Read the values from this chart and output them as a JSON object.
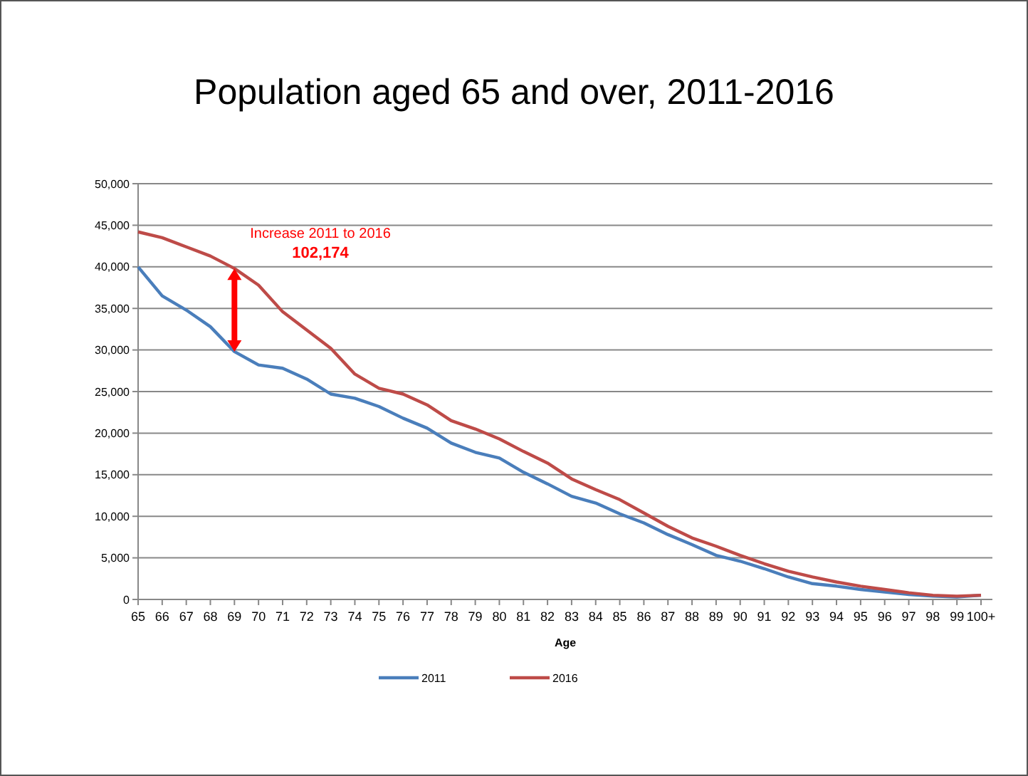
{
  "chart_data": {
    "type": "line",
    "title": "Population aged 65 and over, 2011-2016",
    "xlabel": "Age",
    "categories": [
      "65",
      "66",
      "67",
      "68",
      "69",
      "70",
      "71",
      "72",
      "73",
      "74",
      "75",
      "76",
      "77",
      "78",
      "79",
      "80",
      "81",
      "82",
      "83",
      "84",
      "85",
      "86",
      "87",
      "88",
      "89",
      "90",
      "91",
      "92",
      "93",
      "94",
      "95",
      "96",
      "97",
      "98",
      "99",
      "100+"
    ],
    "series": [
      {
        "name": "2011",
        "color": "#4a7ebb",
        "values": [
          40000,
          36500,
          34800,
          32800,
          29800,
          28200,
          27800,
          26500,
          24700,
          24200,
          23200,
          21800,
          20600,
          18800,
          17700,
          17000,
          15300,
          13900,
          12400,
          11600,
          10300,
          9200,
          7800,
          6600,
          5300,
          4600,
          3700,
          2700,
          1900,
          1600,
          1200,
          900,
          600,
          400,
          300,
          500
        ]
      },
      {
        "name": "2016",
        "color": "#be4b48",
        "values": [
          44200,
          43500,
          42400,
          41300,
          39800,
          37800,
          34600,
          32400,
          30200,
          27100,
          25400,
          24700,
          23400,
          21500,
          20500,
          19300,
          17800,
          16400,
          14500,
          13200,
          12000,
          10400,
          8800,
          7400,
          6400,
          5300,
          4300,
          3400,
          2700,
          2100,
          1600,
          1200,
          800,
          500,
          400,
          500
        ]
      }
    ],
    "ylim": [
      0,
      50000
    ],
    "yticks": [
      {
        "value": 0,
        "label": "0"
      },
      {
        "value": 5000,
        "label": "5,000"
      },
      {
        "value": 10000,
        "label": "10,000"
      },
      {
        "value": 15000,
        "label": "15,000"
      },
      {
        "value": 20000,
        "label": "20,000"
      },
      {
        "value": 25000,
        "label": "25,000"
      },
      {
        "value": 30000,
        "label": "30,000"
      },
      {
        "value": 35000,
        "label": "35,000"
      },
      {
        "value": 40000,
        "label": "40,000"
      },
      {
        "value": 45000,
        "label": "45,000"
      },
      {
        "value": 50000,
        "label": "50,000"
      }
    ],
    "grid": "y",
    "legend": "bottom",
    "marker": "none",
    "line_style": "solid",
    "annotations": [
      "Increase 2011 to 2016",
      "102,174"
    ]
  }
}
